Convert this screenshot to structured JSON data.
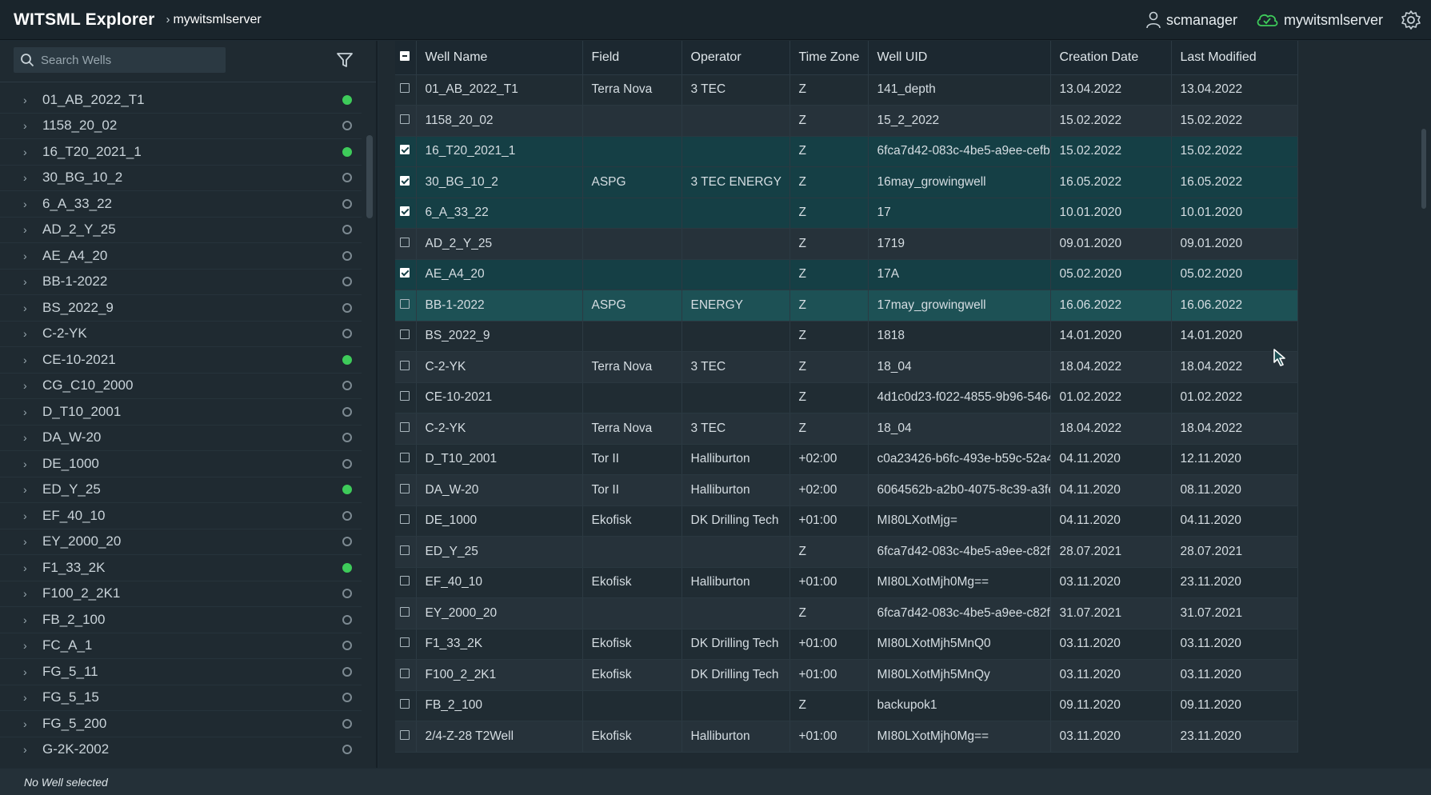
{
  "app": {
    "title": "WITSML Explorer",
    "breadcrumb": "mywitsmlserver"
  },
  "topbar": {
    "user": "scmanager",
    "server": "mywitsmlserver",
    "icons": [
      "user-icon",
      "cloud-connected-icon",
      "gear-icon"
    ]
  },
  "sidebar": {
    "search_placeholder": "Search Wells",
    "wells": [
      {
        "name": "01_AB_2022_T1",
        "active": true
      },
      {
        "name": "1158_20_02",
        "active": false
      },
      {
        "name": "16_T20_2021_1",
        "active": true
      },
      {
        "name": "30_BG_10_2",
        "active": false
      },
      {
        "name": "6_A_33_22",
        "active": false
      },
      {
        "name": "AD_2_Y_25",
        "active": false
      },
      {
        "name": "AE_A4_20",
        "active": false
      },
      {
        "name": "BB-1-2022",
        "active": false
      },
      {
        "name": "BS_2022_9",
        "active": false
      },
      {
        "name": "C-2-YK",
        "active": false
      },
      {
        "name": "CE-10-2021",
        "active": true
      },
      {
        "name": "CG_C10_2000",
        "active": false
      },
      {
        "name": "D_T10_2001",
        "active": false
      },
      {
        "name": "DA_W-20",
        "active": false
      },
      {
        "name": "DE_1000",
        "active": false
      },
      {
        "name": "ED_Y_25",
        "active": true
      },
      {
        "name": "EF_40_10",
        "active": false
      },
      {
        "name": "EY_2000_20",
        "active": false
      },
      {
        "name": "F1_33_2K",
        "active": true
      },
      {
        "name": "F100_2_2K1",
        "active": false
      },
      {
        "name": "FB_2_100",
        "active": false
      },
      {
        "name": "FC_A_1",
        "active": false
      },
      {
        "name": "FG_5_11",
        "active": false
      },
      {
        "name": "FG_5_15",
        "active": false
      },
      {
        "name": "FG_5_200",
        "active": false
      },
      {
        "name": "G-2K-2002",
        "active": false
      }
    ]
  },
  "table": {
    "columns": [
      "Well Name",
      "Field",
      "Operator",
      "Time Zone",
      "Well UID",
      "Creation Date",
      "Last Modified"
    ],
    "rows": [
      {
        "checked": false,
        "state": "odd",
        "cells": [
          "01_AB_2022_T1",
          "Terra Nova",
          "3 TEC",
          "Z",
          "141_depth",
          "13.04.2022",
          "13.04.2022"
        ]
      },
      {
        "checked": false,
        "state": "even",
        "cells": [
          "1158_20_02",
          "",
          "",
          "Z",
          "15_2_2022",
          "15.02.2022",
          "15.02.2022"
        ]
      },
      {
        "checked": true,
        "state": "sel",
        "cells": [
          "16_T20_2021_1",
          "",
          "",
          "Z",
          "6fca7d42-083c-4be5-a9ee-cefb...",
          "15.02.2022",
          "15.02.2022"
        ]
      },
      {
        "checked": true,
        "state": "sel",
        "cells": [
          "30_BG_10_2",
          "ASPG",
          "3 TEC ENERGY",
          "Z",
          "16may_growingwell",
          "16.05.2022",
          "16.05.2022"
        ]
      },
      {
        "checked": true,
        "state": "sel",
        "cells": [
          "6_A_33_22",
          "",
          "",
          "Z",
          "17",
          "10.01.2020",
          "10.01.2020"
        ]
      },
      {
        "checked": false,
        "state": "even",
        "cells": [
          "AD_2_Y_25",
          "",
          "",
          "Z",
          "1719",
          "09.01.2020",
          "09.01.2020"
        ]
      },
      {
        "checked": true,
        "state": "sel",
        "cells": [
          "AE_A4_20",
          "",
          "",
          "Z",
          "17A",
          "05.02.2020",
          "05.02.2020"
        ]
      },
      {
        "checked": false,
        "state": "hover",
        "cells": [
          "BB-1-2022",
          "ASPG",
          "ENERGY",
          "Z",
          "17may_growingwell",
          "16.06.2022",
          "16.06.2022"
        ]
      },
      {
        "checked": false,
        "state": "odd",
        "cells": [
          "BS_2022_9",
          "",
          "",
          "Z",
          "1818",
          "14.01.2020",
          "14.01.2020"
        ]
      },
      {
        "checked": false,
        "state": "even",
        "cells": [
          "C-2-YK",
          "Terra Nova",
          "3 TEC",
          "Z",
          "18_04",
          "18.04.2022",
          "18.04.2022"
        ]
      },
      {
        "checked": false,
        "state": "odd",
        "cells": [
          "CE-10-2021",
          "",
          "",
          "Z",
          "4d1c0d23-f022-4855-9b96-5464...",
          "01.02.2022",
          "01.02.2022"
        ]
      },
      {
        "checked": false,
        "state": "even",
        "cells": [
          "C-2-YK",
          "Terra Nova",
          "3 TEC",
          "Z",
          "18_04",
          "18.04.2022",
          "18.04.2022"
        ]
      },
      {
        "checked": false,
        "state": "odd",
        "cells": [
          "D_T10_2001",
          "Tor II",
          "Halliburton",
          "+02:00",
          "c0a23426-b6fc-493e-b59c-52a4...",
          "04.11.2020",
          "12.11.2020"
        ]
      },
      {
        "checked": false,
        "state": "even",
        "cells": [
          "DA_W-20",
          "Tor II",
          "Halliburton",
          "+02:00",
          "6064562b-a2b0-4075-8c39-a3fe...",
          "04.11.2020",
          "08.11.2020"
        ]
      },
      {
        "checked": false,
        "state": "odd",
        "cells": [
          "DE_1000",
          "Ekofisk",
          "DK Drilling Tech",
          "+01:00",
          "MI80LXotMjg=",
          "04.11.2020",
          "04.11.2020"
        ]
      },
      {
        "checked": false,
        "state": "even",
        "cells": [
          "ED_Y_25",
          "",
          "",
          "Z",
          "6fca7d42-083c-4be5-a9ee-c82fb...",
          "28.07.2021",
          "28.07.2021"
        ]
      },
      {
        "checked": false,
        "state": "odd",
        "cells": [
          "EF_40_10",
          "Ekofisk",
          "Halliburton",
          "+01:00",
          "MI80LXotMjh0Mg==",
          "03.11.2020",
          "23.11.2020"
        ]
      },
      {
        "checked": false,
        "state": "even",
        "cells": [
          "EY_2000_20",
          "",
          "",
          "Z",
          "6fca7d42-083c-4be5-a9ee-c82fb...",
          "31.07.2021",
          "31.07.2021"
        ]
      },
      {
        "checked": false,
        "state": "odd",
        "cells": [
          "F1_33_2K",
          "Ekofisk",
          "DK Drilling Tech",
          "+01:00",
          "MI80LXotMjh5MnQ0",
          "03.11.2020",
          "03.11.2020"
        ]
      },
      {
        "checked": false,
        "state": "even",
        "cells": [
          "F100_2_2K1",
          "Ekofisk",
          "DK Drilling Tech",
          "+01:00",
          "MI80LXotMjh5MnQy",
          "03.11.2020",
          "03.11.2020"
        ]
      },
      {
        "checked": false,
        "state": "odd",
        "cells": [
          "FB_2_100",
          "",
          "",
          "Z",
          "backupok1",
          "09.11.2020",
          "09.11.2020"
        ]
      },
      {
        "checked": false,
        "state": "even",
        "cells": [
          "2/4-Z-28 T2Well",
          "Ekofisk",
          "Halliburton",
          "+01:00",
          "MI80LXotMjh0Mg==",
          "03.11.2020",
          "23.11.2020"
        ]
      }
    ]
  },
  "status": {
    "text": "No Well selected"
  },
  "colors": {
    "active_dot": "#3ecb5a",
    "selected_row": "#153f45",
    "hover_row": "#1d5155"
  }
}
